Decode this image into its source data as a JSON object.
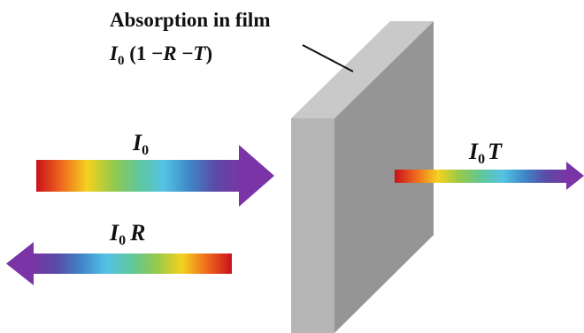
{
  "labels": {
    "absorption_title": "Absorption in film",
    "absorption_formula": {
      "symbol": "I",
      "subscript": "0",
      "open": " (1 −",
      "r": "R",
      "minus": " −",
      "t": "T",
      "close": ")"
    },
    "incident": {
      "symbol": "I",
      "subscript": "0"
    },
    "reflected": {
      "symbol": "I",
      "subscript": "0",
      "factor": "R"
    },
    "transmitted": {
      "symbol": "I",
      "subscript": "0",
      "factor": "T"
    }
  },
  "colors": {
    "spectrum": [
      "#c8101a",
      "#ef6a1e",
      "#f4d21f",
      "#95c94a",
      "#5fc79a",
      "#54c3e4",
      "#3f86c8",
      "#5a4ba6",
      "#7a34a6"
    ],
    "arrowhead": "#7a34a6",
    "film_front": "#b5b5b5",
    "film_top": "#c9c9c9",
    "film_side": "#959595",
    "film_edge": "#a8a8a8",
    "pointer_line": "#111111"
  }
}
